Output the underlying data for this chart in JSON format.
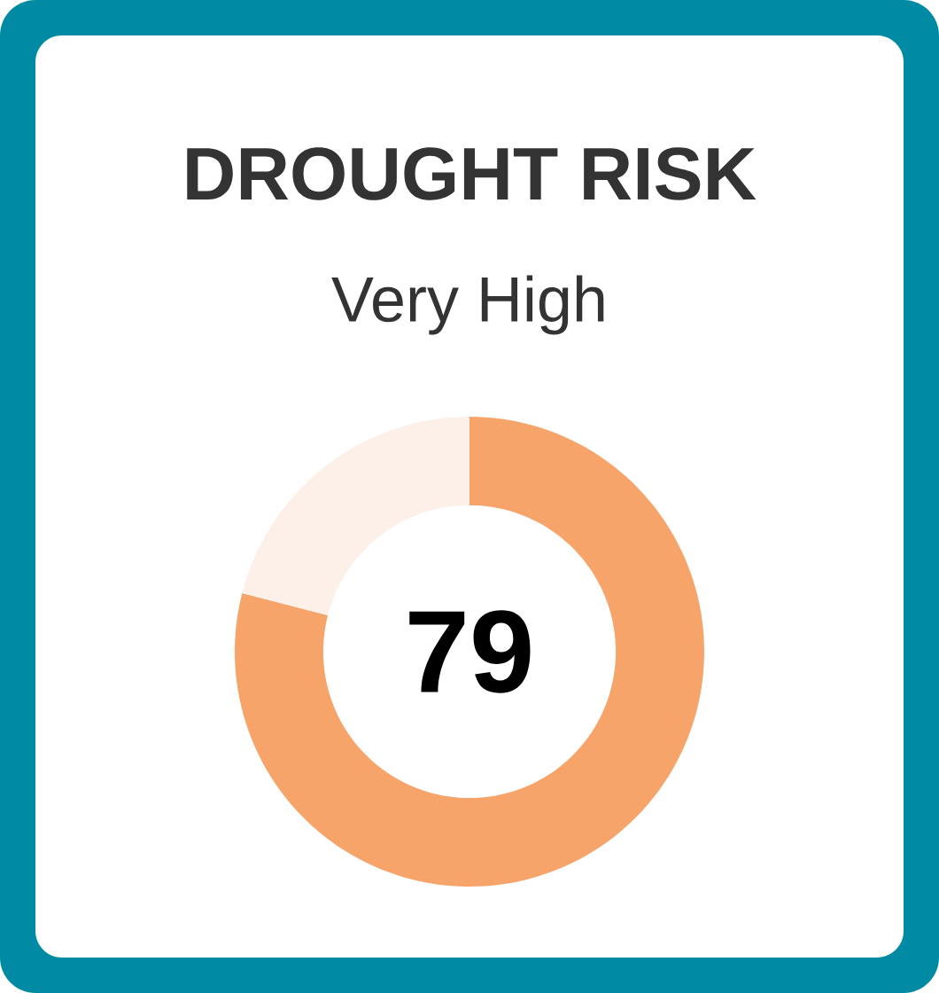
{
  "chart_data": {
    "type": "donut",
    "title": "DROUGHT RISK",
    "subtitle": "Very High",
    "categories": [
      null,
      null
    ],
    "values": [
      79,
      21
    ],
    "colors": [
      "#f6a46a",
      "#fcf0e8"
    ],
    "annotations": [
      "79"
    ]
  }
}
